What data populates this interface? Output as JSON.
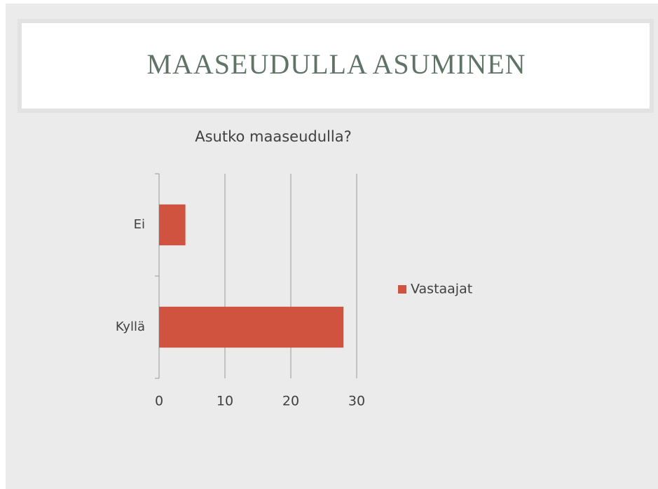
{
  "slide": {
    "title": "MAASEUDULLA ASUMINEN"
  },
  "chart_data": {
    "type": "hbar",
    "title": "Asutko maaseudulla?",
    "categories": [
      "Ei",
      "Kyllä"
    ],
    "series": [
      {
        "name": "Vastaajat",
        "color": "#d0533f",
        "values": [
          4,
          28
        ]
      }
    ],
    "xlim": [
      0,
      30
    ],
    "xticks": [
      0,
      10,
      20,
      30
    ],
    "grid": true,
    "legend": "right"
  }
}
